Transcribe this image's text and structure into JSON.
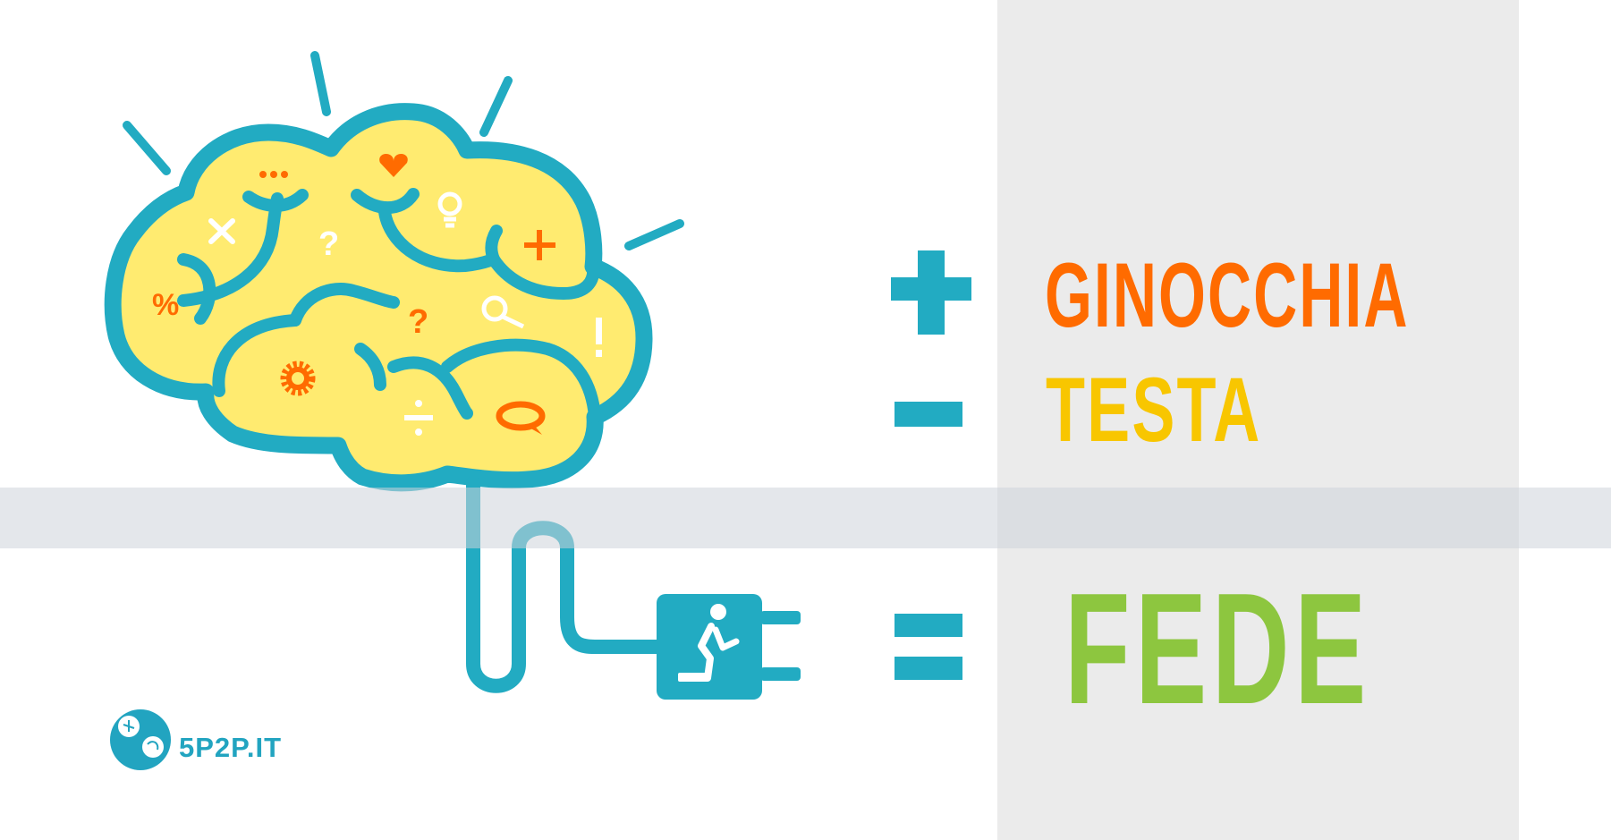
{
  "equation": {
    "terms": [
      {
        "operator": "plus",
        "word": "GINOCCHIA",
        "color": "#ff6b00"
      },
      {
        "operator": "minus",
        "word": "TESTA",
        "color": "#f8c600"
      },
      {
        "operator": "equals",
        "word": "FEDE",
        "color": "#8dc63f"
      }
    ],
    "operator_color": "#22abc2"
  },
  "brand": {
    "text": "5P2P.IT",
    "color": "#22a4c0"
  },
  "illustration": {
    "brain_fill": "#ffeb70",
    "outline_color": "#22abc2",
    "icons": [
      "ellipsis-icon",
      "heart-icon",
      "lightbulb-icon",
      "times-icon",
      "question-icon",
      "plus-icon",
      "percent-icon",
      "magnifier-icon",
      "exclamation-icon",
      "gear-icon",
      "divide-icon",
      "speech-bubble-icon",
      "plug-icon",
      "kneeling-person-icon"
    ]
  }
}
